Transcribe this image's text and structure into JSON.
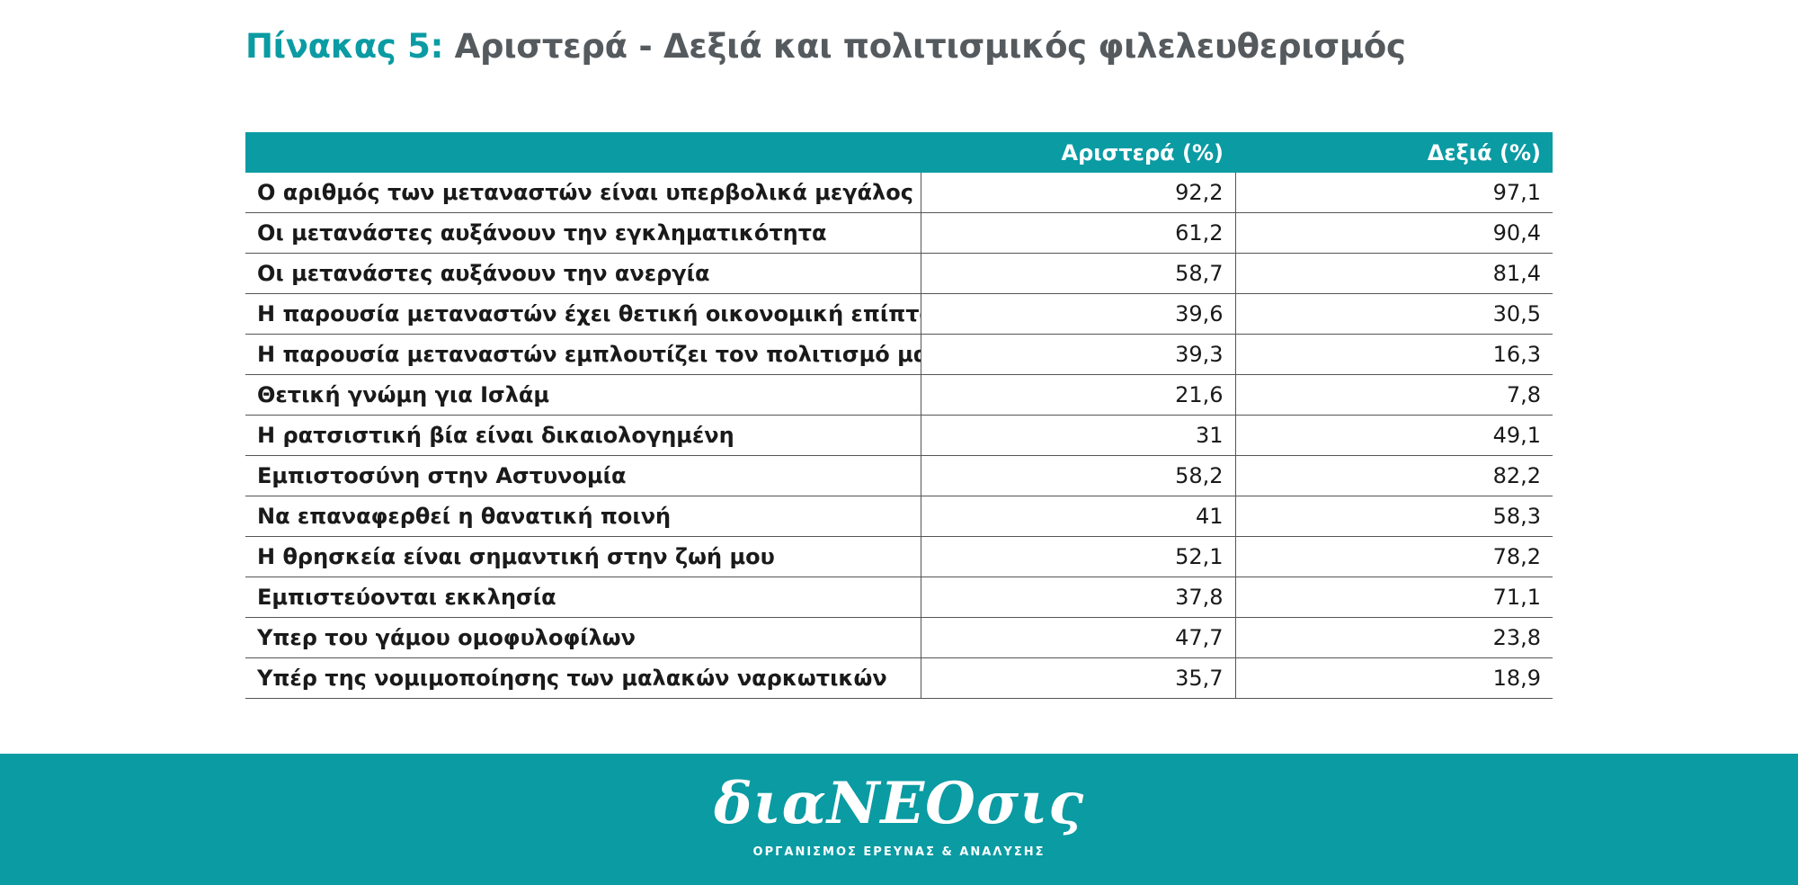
{
  "title": {
    "label": "Πίνακας 5:",
    "text": "Αριστερά - Δεξιά και πολιτισμικός φιλελευθερισμός"
  },
  "table": {
    "headers": [
      "",
      "Αριστερά (%)",
      "Δεξιά (%)"
    ],
    "rows": [
      {
        "label": "Ο αριθμός των μεταναστών είναι υπερβολικά μεγάλος",
        "left": "92,2",
        "right": "97,1"
      },
      {
        "label": "Οι μετανάστες αυξάνουν την εγκληματικότητα",
        "left": "61,2",
        "right": "90,4"
      },
      {
        "label": "Οι μετανάστες αυξάνουν την ανεργία",
        "left": "58,7",
        "right": "81,4"
      },
      {
        "label": "Η παρουσία μεταναστών έχει θετική οικονομική επίπτωση",
        "left": "39,6",
        "right": "30,5"
      },
      {
        "label": "Η παρουσία μεταναστών εμπλουτίζει τον πολιτισμό μας",
        "left": "39,3",
        "right": "16,3"
      },
      {
        "label": "Θετική γνώμη για Ισλάμ",
        "left": "21,6",
        "right": "7,8"
      },
      {
        "label": "Η ρατσιστική βία είναι δικαιολογημένη",
        "left": "31",
        "right": "49,1"
      },
      {
        "label": "Εμπιστοσύνη στην Αστυνομία",
        "left": "58,2",
        "right": "82,2"
      },
      {
        "label": "Να επαναφερθεί η θανατική ποινή",
        "left": "41",
        "right": "58,3"
      },
      {
        "label": "Η θρησκεία είναι σημαντική στην ζωή μου",
        "left": "52,1",
        "right": "78,2"
      },
      {
        "label": "Εμπιστεύονται εκκλησία",
        "left": "37,8",
        "right": "71,1"
      },
      {
        "label": "Υπερ του γάμου ομοφυλοφίλων",
        "left": "47,7",
        "right": "23,8"
      },
      {
        "label": "Υπέρ της νομιμοποίησης των μαλακών ναρκωτικών",
        "left": "35,7",
        "right": "18,9"
      }
    ]
  },
  "footer": {
    "logo_text": "διαNEOσις",
    "tagline": "ΟΡΓΑΝΙΣΜΟΣ ΕΡΕΥΝΑΣ & ΑΝΑΛΥΣΗΣ"
  },
  "colors": {
    "accent": "#0a9ba3",
    "title_text": "#555a5e"
  }
}
